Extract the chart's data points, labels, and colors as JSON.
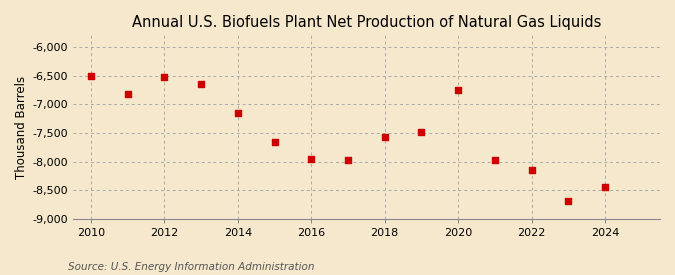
{
  "title": "Annual U.S. Biofuels Plant Net Production of Natural Gas Liquids",
  "ylabel": "Thousand Barrels",
  "source": "Source: U.S. Energy Information Administration",
  "background_color": "#f5e8cc",
  "plot_bg_color": "#f5e8cc",
  "grid_color": "#aaaaaa",
  "dot_color": "#cc0000",
  "years": [
    2010,
    2011,
    2012,
    2013,
    2014,
    2015,
    2016,
    2017,
    2018,
    2019,
    2020,
    2021,
    2022,
    2023,
    2024
  ],
  "values": [
    -6500,
    -6820,
    -6520,
    -6640,
    -7150,
    -7660,
    -7950,
    -7980,
    -7580,
    -7480,
    -6760,
    -7980,
    -8150,
    -8680,
    -8450
  ],
  "ylim": [
    -9000,
    -5800
  ],
  "yticks": [
    -9000,
    -8500,
    -8000,
    -7500,
    -7000,
    -6500,
    -6000
  ],
  "xlim": [
    2009.5,
    2025.5
  ],
  "xticks": [
    2010,
    2012,
    2014,
    2016,
    2018,
    2020,
    2022,
    2024
  ],
  "title_fontsize": 10.5,
  "label_fontsize": 8.5,
  "tick_fontsize": 8,
  "source_fontsize": 7.5
}
